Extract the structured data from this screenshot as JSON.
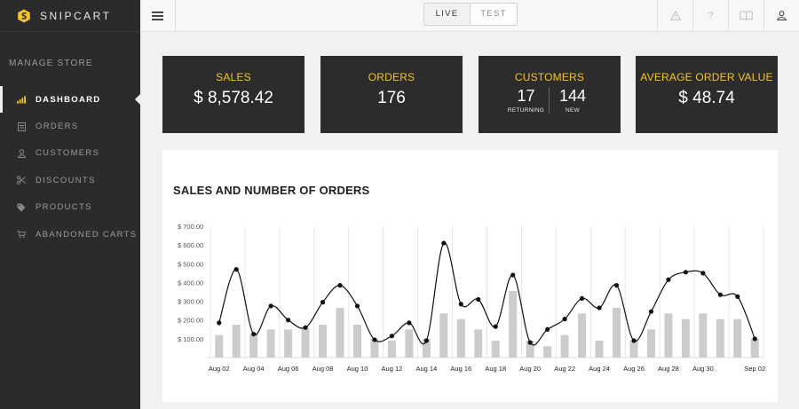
{
  "brand": {
    "name": "SNIPCART",
    "logo_icon": "snipcart-hex-logo-icon",
    "accent": "#f2c430"
  },
  "sidebar": {
    "section_label": "MANAGE STORE",
    "items": [
      {
        "label": "DASHBOARD",
        "icon": "bar-chart-icon",
        "active": true
      },
      {
        "label": "ORDERS",
        "icon": "orders-icon",
        "active": false
      },
      {
        "label": "CUSTOMERS",
        "icon": "customer-icon",
        "active": false
      },
      {
        "label": "DISCOUNTS",
        "icon": "scissors-icon",
        "active": false
      },
      {
        "label": "PRODUCTS",
        "icon": "tag-icon",
        "active": false
      },
      {
        "label": "ABANDONED CARTS",
        "icon": "cart-icon",
        "active": false
      }
    ]
  },
  "topbar": {
    "menu_icon": "hamburger-icon",
    "env": {
      "live_label": "LIVE",
      "test_label": "TEST",
      "selected": "LIVE"
    },
    "icons": [
      "warning-icon",
      "help-icon",
      "book-icon",
      "user-icon"
    ],
    "help_glyph": "?"
  },
  "stats": {
    "sales": {
      "title": "SALES",
      "value": "$ 8,578.42"
    },
    "orders": {
      "title": "ORDERS",
      "value": "176"
    },
    "customers": {
      "title": "CUSTOMERS",
      "returning_value": "17",
      "returning_label": "RETURNING",
      "new_value": "144",
      "new_label": "NEW"
    },
    "aov": {
      "title": "AVERAGE ORDER VALUE",
      "value": "$ 48.74"
    }
  },
  "chart_data": {
    "type": "bar+line",
    "title": "SALES AND NUMBER OF ORDERS",
    "y_ticks": [
      "$ 100.00",
      "$ 200.00",
      "$ 300.00",
      "$ 400.00",
      "$ 500.00",
      "$ 600.00",
      "$ 700.00"
    ],
    "ylim": [
      0,
      700
    ],
    "x_tick_labels": [
      "Aug 02",
      "Aug 04",
      "Aug 06",
      "Aug 08",
      "Aug 10",
      "Aug 12",
      "Aug 14",
      "Aug 16",
      "Aug 18",
      "Aug 20",
      "Aug 22",
      "Aug 24",
      "Aug 26",
      "Aug 28",
      "Aug 30",
      "Sep 02"
    ],
    "grid": "vertical",
    "categories": [
      "Aug 02",
      "Aug 03",
      "Aug 04",
      "Aug 05",
      "Aug 06",
      "Aug 07",
      "Aug 08",
      "Aug 09",
      "Aug 10",
      "Aug 11",
      "Aug 12",
      "Aug 13",
      "Aug 14",
      "Aug 15",
      "Aug 16",
      "Aug 17",
      "Aug 18",
      "Aug 19",
      "Aug 20",
      "Aug 21",
      "Aug 22",
      "Aug 23",
      "Aug 24",
      "Aug 25",
      "Aug 26",
      "Aug 27",
      "Aug 28",
      "Aug 29",
      "Aug 30",
      "Aug 31",
      "Sep 01",
      "Sep 02"
    ],
    "series": [
      {
        "kind": "bar",
        "color": "#cccccc",
        "values": [
          120,
          175,
          125,
          150,
          150,
          155,
          175,
          265,
          175,
          100,
          90,
          150,
          100,
          235,
          205,
          150,
          90,
          355,
          90,
          60,
          120,
          235,
          90,
          265,
          90,
          150,
          235,
          205,
          235,
          205,
          205,
          100
        ]
      },
      {
        "kind": "line",
        "color": "#111111",
        "values": [
          185,
          470,
          125,
          275,
          200,
          160,
          295,
          385,
          275,
          95,
          115,
          185,
          90,
          610,
          285,
          310,
          165,
          440,
          80,
          150,
          205,
          315,
          265,
          385,
          90,
          245,
          415,
          455,
          450,
          335,
          325,
          100
        ]
      }
    ]
  }
}
